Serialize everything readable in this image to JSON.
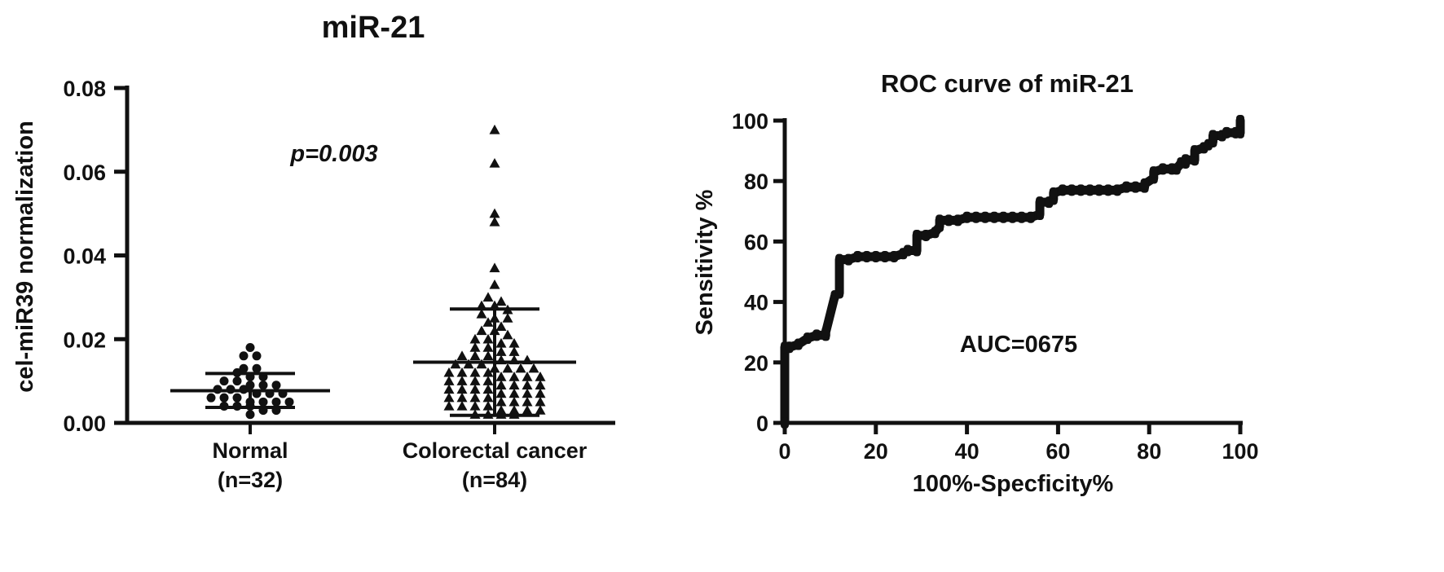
{
  "colors": {
    "ink": "#111111",
    "background": "#ffffff"
  },
  "chart_data": [
    {
      "type": "scatter",
      "title": "miR-21",
      "ylabel": "cel-miR39 normalization",
      "xlabel": "",
      "ylim": [
        0,
        0.08
      ],
      "yticks": [
        "0.00",
        "0.02",
        "0.04",
        "0.06",
        "0.08"
      ],
      "annotation": "p=0.003",
      "grid": false,
      "groups": [
        {
          "label": "Normal",
          "sublabel": "(n=32)",
          "marker": "circle",
          "mean": 0.0077,
          "sd_upper": 0.0118,
          "sd_lower": 0.0037,
          "values": [
            0.018,
            0.016,
            0.016,
            0.013,
            0.013,
            0.012,
            0.011,
            0.011,
            0.01,
            0.01,
            0.009,
            0.009,
            0.009,
            0.008,
            0.008,
            0.008,
            0.007,
            0.007,
            0.007,
            0.006,
            0.006,
            0.006,
            0.005,
            0.005,
            0.005,
            0.005,
            0.004,
            0.004,
            0.004,
            0.003,
            0.003,
            0.002
          ]
        },
        {
          "label": "Colorectal cancer",
          "sublabel": "(n=84)",
          "marker": "triangle",
          "mean": 0.0145,
          "sd_upper": 0.0272,
          "sd_lower": 0.0018,
          "values": [
            0.07,
            0.062,
            0.05,
            0.048,
            0.037,
            0.033,
            0.03,
            0.029,
            0.028,
            0.028,
            0.027,
            0.026,
            0.025,
            0.025,
            0.024,
            0.023,
            0.022,
            0.022,
            0.021,
            0.02,
            0.02,
            0.019,
            0.019,
            0.018,
            0.018,
            0.017,
            0.017,
            0.016,
            0.016,
            0.016,
            0.015,
            0.015,
            0.015,
            0.014,
            0.014,
            0.014,
            0.013,
            0.013,
            0.013,
            0.013,
            0.012,
            0.012,
            0.012,
            0.012,
            0.011,
            0.011,
            0.011,
            0.011,
            0.01,
            0.01,
            0.01,
            0.01,
            0.009,
            0.009,
            0.009,
            0.009,
            0.008,
            0.008,
            0.008,
            0.008,
            0.007,
            0.007,
            0.007,
            0.007,
            0.006,
            0.006,
            0.006,
            0.006,
            0.005,
            0.005,
            0.005,
            0.005,
            0.004,
            0.004,
            0.004,
            0.004,
            0.003,
            0.003,
            0.003,
            0.003,
            0.002,
            0.002,
            0.002,
            0.002
          ]
        }
      ]
    },
    {
      "type": "line",
      "title": "ROC curve of miR-21",
      "xlabel": "100%-Specficity%",
      "ylabel": "Sensitivity %",
      "xlim": [
        0,
        100
      ],
      "ylim": [
        0,
        100
      ],
      "xticks": [
        "0",
        "20",
        "40",
        "60",
        "80",
        "100"
      ],
      "yticks": [
        "0",
        "20",
        "40",
        "60",
        "80",
        "100"
      ],
      "annotation": "AUC=0675",
      "grid": false,
      "series": [
        {
          "x": [
            0,
            0,
            1,
            3,
            5,
            7,
            9,
            9,
            11,
            12,
            12,
            14,
            16,
            18,
            20,
            22,
            24,
            26,
            27,
            29,
            29,
            31,
            33,
            34,
            34,
            36,
            38,
            40,
            42,
            44,
            46,
            48,
            50,
            52,
            54,
            56,
            56,
            58,
            59,
            59,
            61,
            63,
            65,
            67,
            69,
            71,
            73,
            75,
            77,
            79,
            79,
            81,
            81,
            83,
            85,
            86,
            87,
            88,
            88,
            90,
            90,
            92,
            93,
            94,
            94,
            96,
            97,
            99,
            100,
            100
          ],
          "y": [
            0,
            25,
            25,
            26,
            28,
            29,
            29,
            30,
            42,
            43,
            54,
            54,
            55,
            55,
            55,
            55,
            55,
            56,
            57,
            57,
            62,
            62,
            63,
            65,
            67,
            67,
            67,
            68,
            68,
            68,
            68,
            68,
            68,
            68,
            68,
            69,
            73,
            73,
            74,
            76,
            77,
            77,
            77,
            77,
            77,
            77,
            77,
            78,
            78,
            78,
            79,
            81,
            83,
            84,
            84,
            84,
            86,
            86,
            87,
            87,
            90,
            91,
            92,
            93,
            95,
            95,
            96,
            96,
            96,
            100
          ]
        }
      ]
    }
  ]
}
